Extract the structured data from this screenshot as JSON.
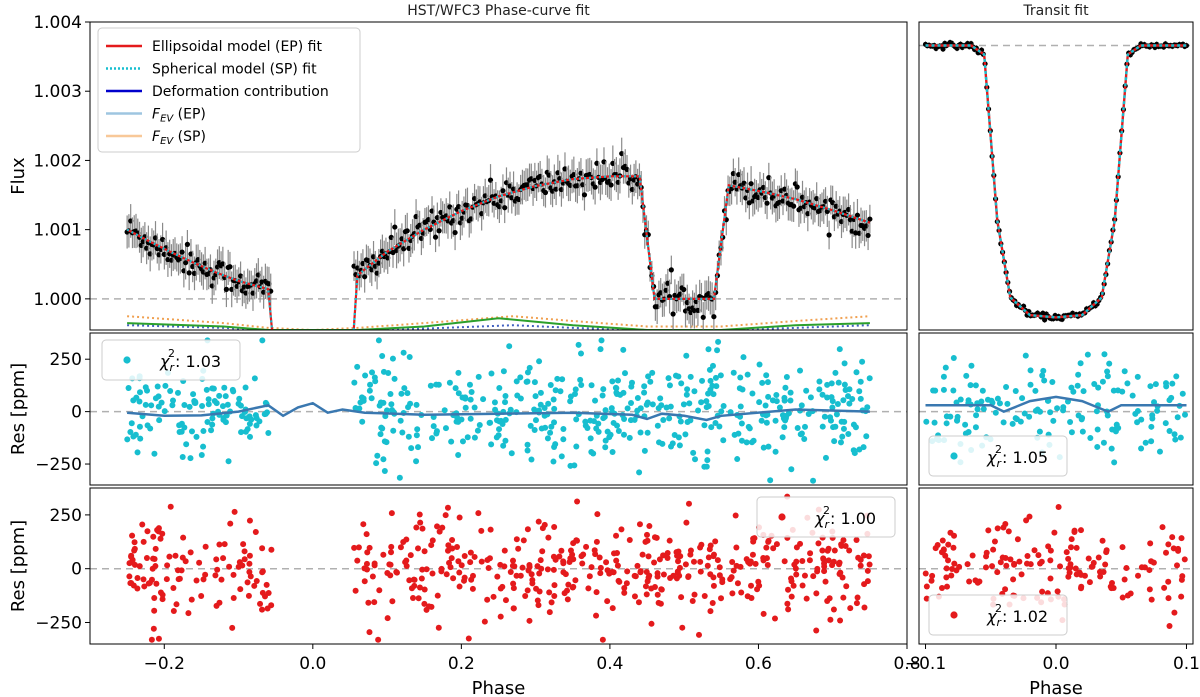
{
  "chart_data": [
    {
      "id": "phasecurve",
      "type": "scatter",
      "title": "HST/WFC3 Phase-curve fit",
      "ylabel": "Flux",
      "xlim": [
        -0.3,
        0.8
      ],
      "ylim": [
        0.99955,
        1.004
      ],
      "yticks": [
        1.0,
        1.001,
        1.002,
        1.003,
        1.004
      ],
      "ytick_labels": [
        "1.000",
        "1.001",
        "1.002",
        "1.003",
        "1.004"
      ],
      "reference_y": 1.0,
      "data_x_range": [
        -0.25,
        0.75
      ],
      "errorbars": true,
      "legend": {
        "placement": "upper-left",
        "entries": [
          {
            "label": "Ellipsoidal model (EP) fit",
            "color": "#e41a1c",
            "style": "solid"
          },
          {
            "label": "Spherical model (SP) fit",
            "color": "#17becf",
            "style": "dotted"
          },
          {
            "label": "Deformation contribution",
            "color": "#0000cc",
            "style": "solid"
          },
          {
            "label": "F_EV (EP)",
            "display_base": "F",
            "display_sub": "EV",
            "display_suffix": " (EP)",
            "color": "#9ec5e0",
            "style": "solid"
          },
          {
            "label": "F_EV (SP)",
            "display_base": "F",
            "display_sub": "EV",
            "display_suffix": " (SP)",
            "color": "#f8c898",
            "style": "solid"
          }
        ]
      },
      "model_EP": [
        [
          -0.25,
          1.001
        ],
        [
          -0.22,
          1.00083
        ],
        [
          -0.19,
          1.00067
        ],
        [
          -0.16,
          1.00052
        ],
        [
          -0.13,
          1.00038
        ],
        [
          -0.1,
          1.00026
        ],
        [
          -0.06,
          1.00014
        ],
        [
          0.06,
          1.00034
        ],
        [
          0.1,
          1.00068
        ],
        [
          0.15,
          1.001
        ],
        [
          0.2,
          1.00127
        ],
        [
          0.25,
          1.00148
        ],
        [
          0.3,
          1.00163
        ],
        [
          0.35,
          1.00173
        ],
        [
          0.4,
          1.00177
        ],
        [
          0.44,
          1.00177
        ],
        [
          0.46,
          1.0
        ],
        [
          0.54,
          1.0
        ],
        [
          0.56,
          1.00164
        ],
        [
          0.6,
          1.00156
        ],
        [
          0.65,
          1.00144
        ],
        [
          0.7,
          1.00128
        ],
        [
          0.75,
          1.0011
        ]
      ],
      "component_green": [
        [
          -0.25,
          0.99965
        ],
        [
          -0.12,
          0.9996
        ],
        [
          -0.06,
          0.99955
        ],
        [
          0.0,
          0.99955
        ],
        [
          0.06,
          0.99955
        ],
        [
          0.15,
          0.9996
        ],
        [
          0.25,
          0.99972
        ],
        [
          0.35,
          0.99962
        ],
        [
          0.45,
          0.99955
        ],
        [
          0.55,
          0.99955
        ],
        [
          0.65,
          0.99962
        ],
        [
          0.75,
          0.99965
        ]
      ],
      "component_orange_dotted": [
        [
          -0.25,
          0.99975
        ],
        [
          -0.12,
          0.99965
        ],
        [
          -0.06,
          0.99958
        ],
        [
          0.0,
          0.99955
        ],
        [
          0.06,
          0.99958
        ],
        [
          0.15,
          0.99965
        ],
        [
          0.27,
          0.99975
        ],
        [
          0.35,
          0.99968
        ],
        [
          0.45,
          0.9996
        ],
        [
          0.55,
          0.9996
        ],
        [
          0.65,
          0.99968
        ],
        [
          0.75,
          0.99975
        ]
      ],
      "component_blue_dotted": [
        [
          -0.25,
          0.99962
        ],
        [
          -0.12,
          0.99958
        ],
        [
          -0.06,
          0.99955
        ],
        [
          0.0,
          0.99955
        ],
        [
          0.06,
          0.99955
        ],
        [
          0.15,
          0.99957
        ],
        [
          0.27,
          0.99962
        ],
        [
          0.35,
          0.99958
        ],
        [
          0.45,
          0.99955
        ],
        [
          0.55,
          0.99955
        ],
        [
          0.65,
          0.99958
        ],
        [
          0.75,
          0.99962
        ]
      ],
      "noise_sd": 0.00011
    },
    {
      "id": "transit",
      "type": "scatter",
      "title": "Transit fit",
      "xlim": [
        -0.105,
        0.105
      ],
      "ylim": [
        0.9764,
        1.0105
      ],
      "reference_y": 1.0079,
      "model": [
        [
          -0.1,
          1.0079
        ],
        [
          -0.065,
          1.0079
        ],
        [
          -0.055,
          1.0069
        ],
        [
          -0.045,
          0.9885
        ],
        [
          -0.035,
          0.98
        ],
        [
          -0.02,
          0.97805
        ],
        [
          0.0,
          0.9778
        ],
        [
          0.02,
          0.97805
        ],
        [
          0.035,
          0.98
        ],
        [
          0.045,
          0.9885
        ],
        [
          0.055,
          1.0069
        ],
        [
          0.065,
          1.0079
        ],
        [
          0.1,
          1.0079
        ]
      ],
      "noise_sd": 0.00015
    },
    {
      "id": "residual_SP",
      "type": "scatter",
      "ylabel": "Res [ppm]",
      "xlim": [
        -0.3,
        0.8
      ],
      "ylim": [
        -350,
        375
      ],
      "yticks": [
        -250,
        0,
        250
      ],
      "ytick_labels": [
        "−250",
        "0",
        "250"
      ],
      "point_color": "#17becf",
      "scatter_sd": 125,
      "trend": [
        [
          -0.25,
          -5
        ],
        [
          -0.2,
          -20
        ],
        [
          -0.15,
          -18
        ],
        [
          -0.1,
          0
        ],
        [
          -0.06,
          30
        ],
        [
          -0.04,
          -20
        ],
        [
          -0.02,
          20
        ],
        [
          0.0,
          40
        ],
        [
          0.02,
          -5
        ],
        [
          0.04,
          10
        ],
        [
          0.07,
          -5
        ],
        [
          0.15,
          -15
        ],
        [
          0.25,
          -10
        ],
        [
          0.35,
          -5
        ],
        [
          0.43,
          -15
        ],
        [
          0.45,
          -35
        ],
        [
          0.47,
          -10
        ],
        [
          0.5,
          -20
        ],
        [
          0.53,
          -40
        ],
        [
          0.55,
          -20
        ],
        [
          0.65,
          10
        ],
        [
          0.75,
          0
        ]
      ],
      "chi_label": {
        "base": "χ",
        "sub": "r",
        "sup": "2",
        "text": ": 1.03"
      }
    },
    {
      "id": "residual_transit_SP",
      "type": "scatter",
      "xlim": [
        -0.105,
        0.105
      ],
      "ylim": [
        -350,
        375
      ],
      "point_color": "#17becf",
      "scatter_sd": 120,
      "trend": [
        [
          -0.1,
          30
        ],
        [
          -0.05,
          30
        ],
        [
          -0.04,
          0
        ],
        [
          -0.03,
          25
        ],
        [
          -0.02,
          50
        ],
        [
          0.0,
          70
        ],
        [
          0.02,
          50
        ],
        [
          0.03,
          25
        ],
        [
          0.04,
          0
        ],
        [
          0.05,
          30
        ],
        [
          0.1,
          30
        ]
      ],
      "chi_label": {
        "base": "χ",
        "sub": "r",
        "sup": "2",
        "text": ": 1.05"
      }
    },
    {
      "id": "residual_EP",
      "type": "scatter",
      "ylabel": "Res [ppm]",
      "xlabel": "Phase",
      "xlim": [
        -0.3,
        0.8
      ],
      "ylim": [
        -350,
        375
      ],
      "yticks": [
        -250,
        0,
        250
      ],
      "ytick_labels": [
        "−250",
        "0",
        "250"
      ],
      "xticks": [
        -0.2,
        0.0,
        0.2,
        0.4,
        0.6,
        0.8
      ],
      "xtick_labels": [
        "−0.2",
        "0.0",
        "0.2",
        "0.4",
        "0.6",
        "0.8"
      ],
      "point_color": "#e41a1c",
      "scatter_sd": 115,
      "chi_label": {
        "base": "χ",
        "sub": "r",
        "sup": "2",
        "text": ": 1.00"
      }
    },
    {
      "id": "residual_transit_EP",
      "type": "scatter",
      "xlabel": "Phase",
      "xlim": [
        -0.105,
        0.105
      ],
      "ylim": [
        -350,
        375
      ],
      "xticks": [
        -0.1,
        0.0,
        0.1
      ],
      "xtick_labels": [
        "−0.1",
        "0.0",
        "0.1"
      ],
      "point_color": "#e41a1c",
      "scatter_sd": 115,
      "chi_label": {
        "base": "χ",
        "sub": "r",
        "sup": "2",
        "text": ": 1.02"
      }
    }
  ]
}
